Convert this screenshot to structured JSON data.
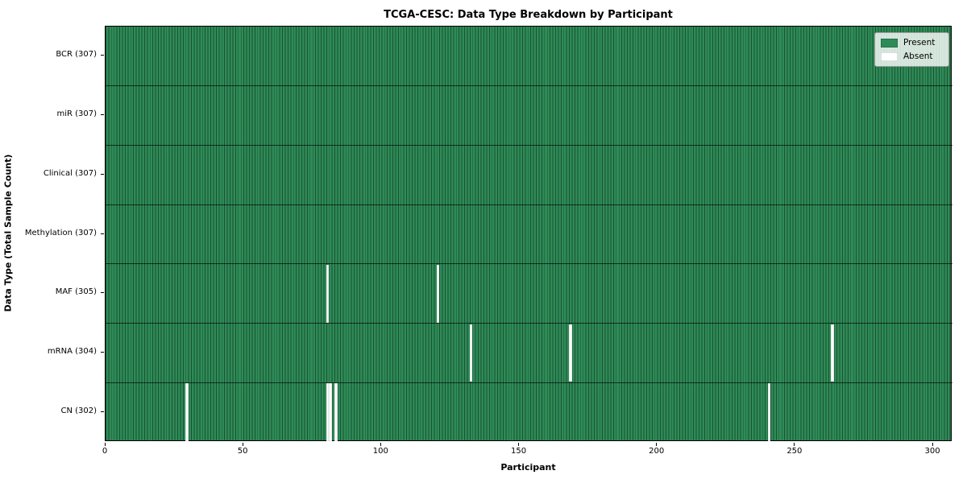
{
  "chart_data": {
    "type": "heatmap",
    "title": "TCGA-CESC: Data Type Breakdown by Participant",
    "xlabel": "Participant",
    "ylabel": "Data Type (Total Sample Count)",
    "x_range": [
      0,
      307
    ],
    "x_ticks": [
      0,
      50,
      100,
      150,
      200,
      250,
      300
    ],
    "n_participants": 307,
    "grid": false,
    "legend_position": "upper right",
    "colors": {
      "present": "#2e8b57",
      "absent": "#ffffff"
    },
    "legend": [
      {
        "label": "Present",
        "color": "#2e8b57"
      },
      {
        "label": "Absent",
        "color": "#ffffff"
      }
    ],
    "rows": [
      {
        "data_type": "BCR",
        "label": "BCR (307)",
        "total": 307,
        "absent_participants": []
      },
      {
        "data_type": "miR",
        "label": "miR (307)",
        "total": 307,
        "absent_participants": []
      },
      {
        "data_type": "Clinical",
        "label": "Clinical (307)",
        "total": 307,
        "absent_participants": []
      },
      {
        "data_type": "Methylation",
        "label": "Methylation (307)",
        "total": 307,
        "absent_participants": []
      },
      {
        "data_type": "MAF",
        "label": "MAF (305)",
        "total": 305,
        "absent_participants": [
          80,
          120
        ]
      },
      {
        "data_type": "mRNA",
        "label": "mRNA (304)",
        "total": 304,
        "absent_participants": [
          132,
          168,
          263
        ]
      },
      {
        "data_type": "CN",
        "label": "CN (302)",
        "total": 302,
        "absent_participants": [
          29,
          80,
          81,
          83,
          240
        ]
      }
    ]
  }
}
